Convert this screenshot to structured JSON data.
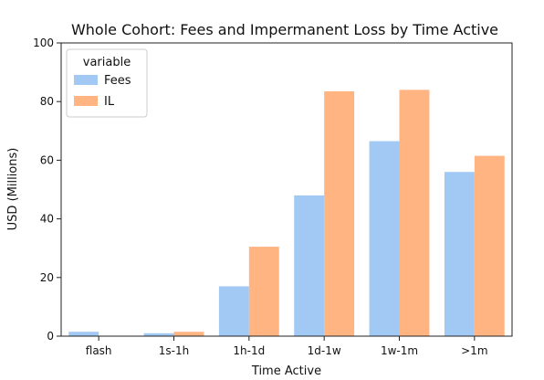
{
  "chart_data": {
    "type": "bar",
    "title": "Whole Cohort: Fees and Impermanent Loss by Time Active",
    "xlabel": "Time Active",
    "ylabel": "USD (Millions)",
    "ylim": [
      0,
      100
    ],
    "yticks": [
      0,
      20,
      40,
      60,
      80,
      100
    ],
    "categories": [
      "flash",
      "1s-1h",
      "1h-1d",
      "1d-1w",
      "1w-1m",
      ">1m"
    ],
    "legend": {
      "title": "variable",
      "position": "top-left"
    },
    "grid": false,
    "series": [
      {
        "name": "Fees",
        "color": "#a1c9f4",
        "values": [
          1.5,
          1.0,
          17.0,
          48.0,
          66.5,
          56.0
        ]
      },
      {
        "name": "IL",
        "color": "#ffb482",
        "values": [
          0,
          1.5,
          30.5,
          83.5,
          84.0,
          61.5
        ]
      }
    ]
  }
}
